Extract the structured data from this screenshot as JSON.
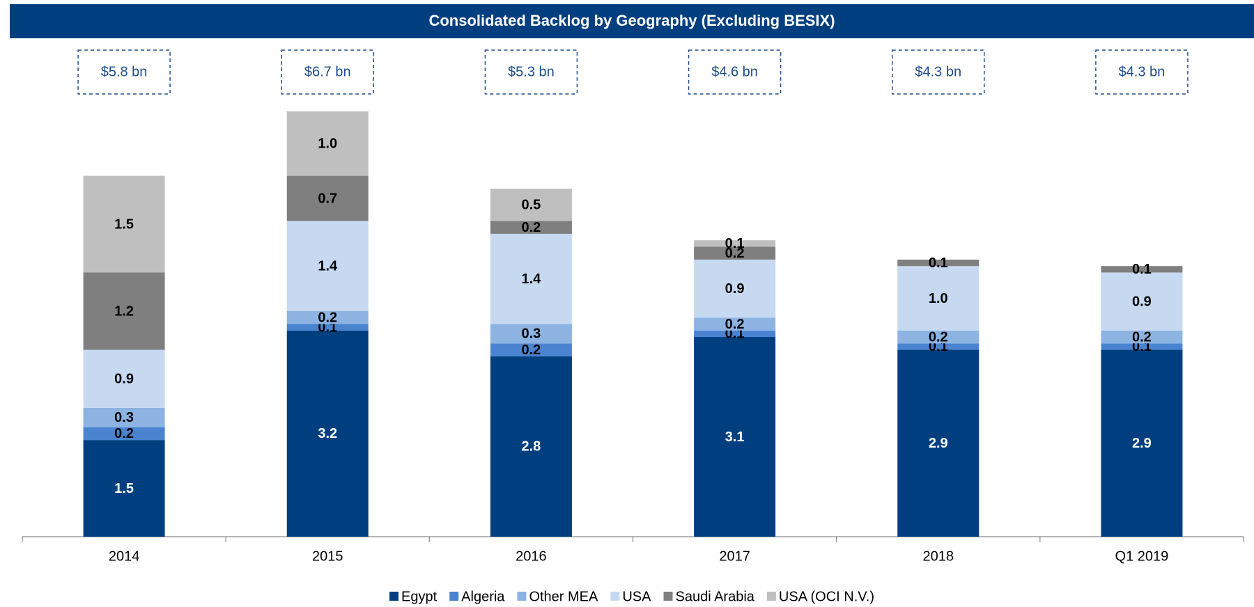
{
  "chart_data": {
    "type": "stacked_bar",
    "title": "Consolidated Backlog by Geography (Excluding BESIX)",
    "categories": [
      "2014",
      "2015",
      "2016",
      "2017",
      "2018",
      "Q1 2019"
    ],
    "series": [
      {
        "name": "Egypt",
        "color": "#003f7f",
        "values": [
          1.5,
          3.2,
          2.8,
          3.1,
          2.9,
          2.9
        ],
        "value_labels": [
          "1.5",
          "3.2",
          "2.8",
          "3.1",
          "2.9",
          "2.9"
        ]
      },
      {
        "name": "Algeria",
        "color": "#4a84d0",
        "values": [
          0.2,
          0.1,
          0.2,
          0.1,
          0.1,
          0.1
        ],
        "value_labels": [
          "0.2",
          "0.1",
          "0.2",
          "0.1",
          "0.1",
          "0.1"
        ]
      },
      {
        "name": "Other MEA",
        "color": "#8db3e2",
        "values": [
          0.3,
          0.2,
          0.3,
          0.2,
          0.2,
          0.2
        ],
        "value_labels": [
          "0.3",
          "0.2",
          "0.3",
          "0.2",
          "0.2",
          "0.2"
        ]
      },
      {
        "name": "USA",
        "color": "#c6d9f1",
        "values": [
          0.9,
          1.4,
          1.4,
          0.9,
          1.0,
          0.9
        ],
        "value_labels": [
          "0.9",
          "1.4",
          "1.4",
          "0.9",
          "1.0",
          "0.9"
        ]
      },
      {
        "name": "Saudi Arabia",
        "color": "#7f7f7f",
        "values": [
          1.2,
          0.7,
          0.2,
          0.2,
          0.1,
          0.1
        ],
        "value_labels": [
          "1.2",
          "0.7",
          "0.2",
          "0.2",
          "0.1",
          "0.1"
        ]
      },
      {
        "name": "USA (OCI N.V.)",
        "color": "#bfbfbf",
        "values": [
          1.5,
          1.0,
          0.5,
          0.1,
          null,
          null
        ],
        "value_labels": [
          "1.5",
          "1.0",
          "0.5",
          "0.1",
          null,
          null
        ]
      }
    ],
    "totals": {
      "values": [
        5.8,
        6.7,
        5.3,
        4.6,
        4.3,
        4.3
      ],
      "value_labels": [
        "$5.8 bn",
        "$6.7 bn",
        "$5.3 bn",
        "$4.6 bn",
        "$4.3 bn",
        "$4.3 bn"
      ]
    },
    "ylim": [
      0,
      7
    ]
  }
}
